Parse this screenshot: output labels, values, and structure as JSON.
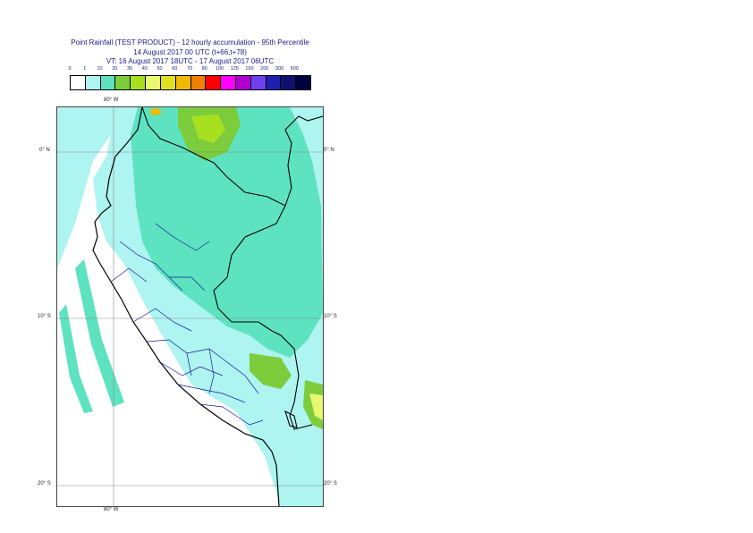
{
  "title": {
    "line1": "Point Rainfall (TEST PRODUCT) - 12 hourly accumulation - 95th Percentile",
    "line2": "14 August 2017 00 UTC (t+66,t+78)",
    "line3": "VT: 16 August 2017 18UTC - 17 August 2017 06UTC"
  },
  "legend": {
    "thresholds": [
      "0",
      "1",
      "10",
      "20",
      "30",
      "40",
      "50",
      "60",
      "70",
      "80",
      "100",
      "125",
      "150",
      "200",
      "300",
      "500"
    ],
    "colors": [
      "#ffffff",
      "#aef4f0",
      "#5de3c0",
      "#7ccc3c",
      "#a8e020",
      "#e8f870",
      "#e0e020",
      "#f0b800",
      "#f08000",
      "#ff0000",
      "#ff00ff",
      "#b000d0",
      "#7040f0",
      "#2020b0",
      "#101070",
      "#000040"
    ]
  },
  "map": {
    "lon_label_top": "80° W",
    "lon_label_bottom": "80° W",
    "lat_labels": [
      "0° N",
      "10° S",
      "20° S"
    ],
    "colors": {
      "sea_light": "#aef4f0",
      "land_medium": "#5de3c0",
      "green": "#7ccc3c",
      "yellowgreen": "#a8e020",
      "yellow": "#e8f870",
      "orange": "#f0b800",
      "border": "#000000",
      "admin": "#1a1a9a",
      "grid": "#888888"
    }
  }
}
